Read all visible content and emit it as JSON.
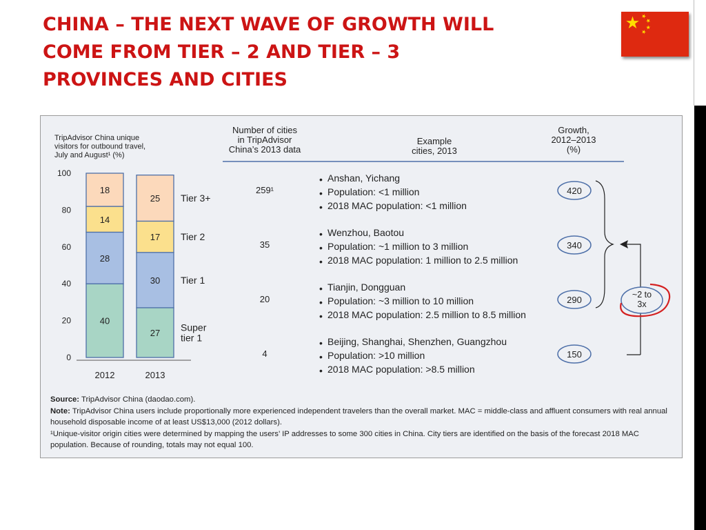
{
  "slide": {
    "title_lines": [
      "CHINA – THE NEXT WAVE OF GROWTH WILL",
      "COME FROM TIER – 2 AND TIER – 3",
      "PROVINCES AND CITIES"
    ],
    "flag_icon": "china-flag-icon",
    "title_color": "#cc1414"
  },
  "chart_data": {
    "type": "bar",
    "stacked": true,
    "title_lines": [
      "TripAdvisor China unique",
      "visitors for outbound travel,",
      "July and August¹ (%)"
    ],
    "categories": [
      "2012",
      "2013"
    ],
    "ylim": [
      0,
      100
    ],
    "yticks": [
      "0",
      "20",
      "40",
      "60",
      "80",
      "100"
    ],
    "series": [
      {
        "name": "Super tier 1",
        "label_lines": [
          "Super",
          "tier 1"
        ],
        "values": [
          40,
          27
        ],
        "color": "#a8d5c5"
      },
      {
        "name": "Tier 1",
        "label_lines": [
          "Tier 1"
        ],
        "values": [
          28,
          30
        ],
        "color": "#a8bfe3"
      },
      {
        "name": "Tier 2",
        "label_lines": [
          "Tier 2"
        ],
        "values": [
          14,
          17
        ],
        "color": "#fbe08d"
      },
      {
        "name": "Tier 3+",
        "label_lines": [
          "Tier 3+"
        ],
        "values": [
          18,
          25
        ],
        "color": "#fcd9bb"
      }
    ],
    "table": {
      "headers": {
        "cities": [
          "Number of cities",
          "in TripAdvisor",
          "China’s 2013 data"
        ],
        "examples": [
          "Example",
          "cities, 2013"
        ],
        "growth": [
          "Growth,",
          "2012–2013",
          "(%)"
        ]
      },
      "rows": [
        {
          "tier": "Tier 3+",
          "cities": "259¹",
          "bullets": [
            "Anshan, Yichang",
            "Population: <1 million",
            "2018 MAC population: <1 million"
          ],
          "growth": "420"
        },
        {
          "tier": "Tier 2",
          "cities": "35",
          "bullets": [
            "Wenzhou, Baotou",
            "Population: ~1 million to 3 million",
            "2018 MAC population: 1 million to 2.5 million"
          ],
          "growth": "340"
        },
        {
          "tier": "Tier 1",
          "cities": "20",
          "bullets": [
            "Tianjin, Dongguan",
            "Population: ~3 million to 10 million",
            "2018 MAC population: 2.5 million to 8.5 million"
          ],
          "growth": "290"
        },
        {
          "tier": "Super tier 1",
          "cities": "4",
          "bullets": [
            "Beijing, Shanghai, Shenzhen, Guangzhou",
            "Population: >10 million",
            "2018 MAC population: >8.5 million"
          ],
          "growth": "150"
        }
      ],
      "callout_lines": [
        "~2 to",
        "3x"
      ]
    }
  },
  "footnotes": {
    "source_label": "Source:",
    "source_text": "TripAdvisor China (daodao.com).",
    "note_label": "Note:",
    "note_text": "TripAdvisor China users include proportionally more experienced independent travelers than the overall market. MAC = middle-class and affluent consumers with real annual household disposable income of at least US$13,000 (2012 dollars).",
    "footnote1": "¹Unique-visitor origin cities were determined by mapping the users’ IP addresses to some 300 cities in China. City tiers are identified on the basis of the forecast 2018 MAC population. Because of rounding, totals may not equal 100."
  }
}
